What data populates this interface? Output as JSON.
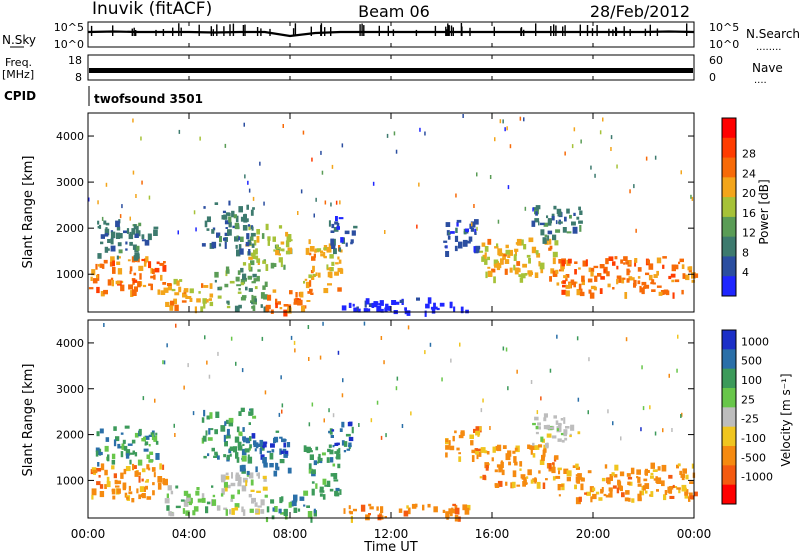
{
  "header": {
    "title": "Inuvik (fitACF)",
    "beam": "Beam 06",
    "date": "28/Feb/2012"
  },
  "sky_panel": {
    "left_label": "N.Sky",
    "left_ticks": [
      "10^5",
      "10^0"
    ],
    "right_ticks": [
      "10^5",
      "10^0"
    ],
    "right_label": "N.Search",
    "right_label_dots": "........"
  },
  "freq_panel": {
    "left_label_line1": "Freq.",
    "left_label_line2": "[MHz]",
    "left_ticks": [
      "18",
      "8"
    ],
    "right_ticks": [
      "60",
      "0"
    ],
    "right_label": "Nave",
    "right_label_dots": "...."
  },
  "cpid": {
    "label": "CPID",
    "value": "twofsound 3501"
  },
  "time_axis": {
    "xlabel": "Time UT",
    "ticks": [
      "00:00",
      "04:00",
      "08:00",
      "12:00",
      "16:00",
      "20:00",
      "00:00"
    ],
    "hours": [
      0,
      4,
      8,
      12,
      16,
      20,
      24
    ]
  },
  "colors": {
    "power": [
      "#1f26ff",
      "#2b4ea0",
      "#3d7a6e",
      "#5a9c56",
      "#a6c238",
      "#f3a51b",
      "#f76a08",
      "#ff3c00",
      "#ff0000"
    ],
    "velocity": [
      "#1b2fc7",
      "#2a6fa8",
      "#3c9a5a",
      "#68c64a",
      "#bdbdbd",
      "#f0c51f",
      "#f58a10",
      "#f45a10",
      "#ff0000"
    ]
  },
  "chart_data": [
    {
      "type": "line",
      "title": "N.Sky",
      "x_unit": "hours UT",
      "ylim_log10": [
        0,
        5
      ],
      "x": [
        0,
        1,
        2,
        3,
        4,
        5,
        6,
        7,
        8,
        9,
        10,
        11,
        12,
        13,
        14,
        15,
        16,
        17,
        18,
        19,
        20,
        21,
        22,
        23,
        24
      ],
      "y_log10": [
        3.0,
        3.1,
        3.0,
        3.0,
        3.0,
        2.9,
        3.0,
        3.0,
        2.2,
        2.8,
        3.0,
        3.0,
        3.0,
        3.0,
        3.0,
        3.0,
        3.0,
        3.0,
        3.0,
        3.0,
        3.0,
        3.0,
        3.0,
        3.1,
        3.0
      ]
    },
    {
      "type": "line",
      "title": "Freq. / Nave",
      "x_unit": "hours UT",
      "ylim": [
        8,
        18
      ],
      "x": [
        0,
        24
      ],
      "y": [
        12,
        12
      ]
    },
    {
      "type": "heatmap",
      "title": "Power [dB]",
      "xlabel": "Time UT",
      "ylabel": "Slant Range [km]",
      "xlim": [
        0,
        24
      ],
      "ylim": [
        180,
        4500
      ],
      "y_ticks": [
        1000,
        2000,
        3000,
        4000
      ],
      "colorbar_label": "Power [dB]",
      "colorbar_ticks": [
        "4",
        "8",
        "12",
        "16",
        "20",
        "24",
        "28"
      ],
      "regions": [
        {
          "t0": 0.0,
          "t1": 3.0,
          "r0": 600,
          "r1": 1400,
          "value": 28
        },
        {
          "t0": 0.3,
          "t1": 2.7,
          "r0": 1400,
          "r1": 2200,
          "value": 13
        },
        {
          "t0": 3.0,
          "t1": 5.0,
          "r0": 300,
          "r1": 900,
          "value": 24
        },
        {
          "t0": 5.0,
          "t1": 7.0,
          "r0": 300,
          "r1": 1200,
          "value": 16
        },
        {
          "t0": 6.0,
          "t1": 8.0,
          "r0": 1200,
          "r1": 2100,
          "value": 21
        },
        {
          "t0": 4.5,
          "t1": 6.5,
          "r0": 1500,
          "r1": 2600,
          "value": 10
        },
        {
          "t0": 7.0,
          "t1": 9.0,
          "r0": 200,
          "r1": 700,
          "value": 28
        },
        {
          "t0": 8.5,
          "t1": 10.0,
          "r0": 700,
          "r1": 1800,
          "value": 24
        },
        {
          "t0": 9.5,
          "t1": 10.5,
          "r0": 1500,
          "r1": 2300,
          "value": 7
        },
        {
          "t0": 10.0,
          "t1": 15.0,
          "r0": 200,
          "r1": 500,
          "value": 5
        },
        {
          "t0": 14.0,
          "t1": 15.5,
          "r0": 1500,
          "r1": 2200,
          "value": 9
        },
        {
          "t0": 15.5,
          "t1": 18.5,
          "r0": 900,
          "r1": 1800,
          "value": 22
        },
        {
          "t0": 17.5,
          "t1": 19.5,
          "r0": 1800,
          "r1": 2500,
          "value": 12
        },
        {
          "t0": 18.5,
          "t1": 24.0,
          "r0": 600,
          "r1": 1400,
          "value": 28
        }
      ]
    },
    {
      "type": "heatmap",
      "title": "Velocity [m s^-1]",
      "xlabel": "Time UT",
      "ylabel": "Slant Range [km]",
      "xlim": [
        0,
        24
      ],
      "ylim": [
        180,
        4500
      ],
      "y_ticks": [
        1000,
        2000,
        3000,
        4000
      ],
      "colorbar_label": "Velocity [m s⁻¹]",
      "colorbar_ticks": [
        "-1000",
        "-500",
        "-100",
        "-25",
        "25",
        "100",
        "500",
        "1000"
      ],
      "regions": [
        {
          "t0": 0.0,
          "t1": 3.0,
          "r0": 600,
          "r1": 1400,
          "value": -200
        },
        {
          "t0": 0.3,
          "t1": 2.7,
          "r0": 1400,
          "r1": 2200,
          "value": 150
        },
        {
          "t0": 3.0,
          "t1": 5.0,
          "r0": 300,
          "r1": 900,
          "value": 60
        },
        {
          "t0": 5.0,
          "t1": 7.0,
          "r0": 300,
          "r1": 1200,
          "value": 20
        },
        {
          "t0": 6.0,
          "t1": 8.0,
          "r0": 1200,
          "r1": 2100,
          "value": 900
        },
        {
          "t0": 4.5,
          "t1": 6.5,
          "r0": 1500,
          "r1": 2600,
          "value": 200
        },
        {
          "t0": 7.0,
          "t1": 9.0,
          "r0": 200,
          "r1": 700,
          "value": 120
        },
        {
          "t0": 8.5,
          "t1": 10.0,
          "r0": 700,
          "r1": 1800,
          "value": 400
        },
        {
          "t0": 9.5,
          "t1": 10.5,
          "r0": 1500,
          "r1": 2300,
          "value": 800
        },
        {
          "t0": 10.0,
          "t1": 15.0,
          "r0": 200,
          "r1": 500,
          "value": -150
        },
        {
          "t0": 14.0,
          "t1": 15.5,
          "r0": 1500,
          "r1": 2200,
          "value": -120
        },
        {
          "t0": 15.5,
          "t1": 18.5,
          "r0": 900,
          "r1": 1800,
          "value": -200
        },
        {
          "t0": 17.5,
          "t1": 19.5,
          "r0": 1800,
          "r1": 2500,
          "value": 10
        },
        {
          "t0": 18.5,
          "t1": 24.0,
          "r0": 600,
          "r1": 1400,
          "value": -400
        }
      ]
    }
  ]
}
